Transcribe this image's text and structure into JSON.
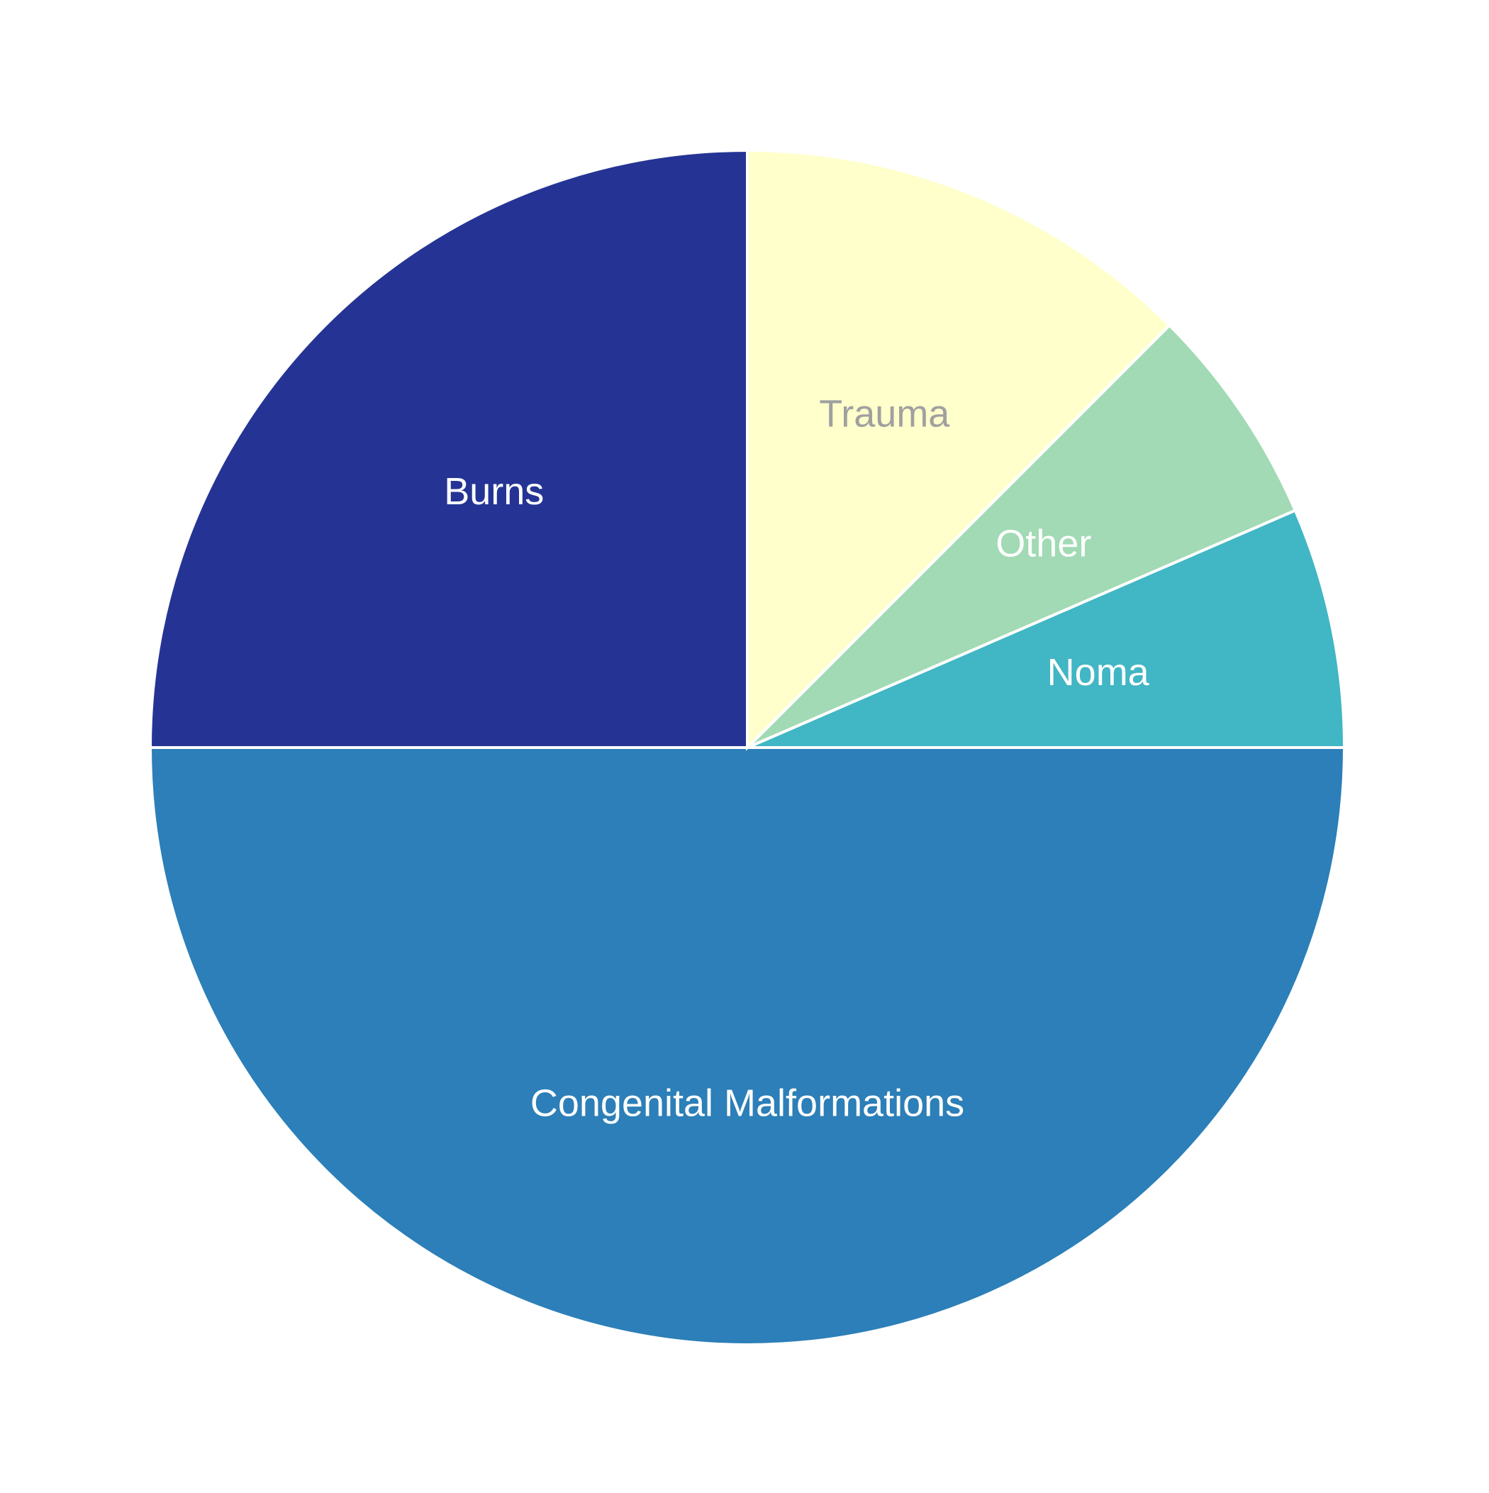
{
  "chart_data": {
    "type": "pie",
    "title": "",
    "start_angle_deg": 90,
    "direction": "counterclockwise",
    "slices": [
      {
        "label": "Burns",
        "value": 25,
        "color": "#253494",
        "label_color": "#ffffff"
      },
      {
        "label": "Congenital Malformations",
        "value": 50,
        "color": "#2c7fb8",
        "label_color": "#ffffff"
      },
      {
        "label": "Noma",
        "value": 6.5,
        "color": "#41b6c4",
        "label_color": "#ffffff"
      },
      {
        "label": "Other",
        "value": 6,
        "color": "#a1dab4",
        "label_color": "#ffffff"
      },
      {
        "label": "Trauma",
        "value": 12.5,
        "color": "#ffffcc",
        "label_color": "#a0a0a0"
      }
    ],
    "legend": "none",
    "grid": false
  }
}
